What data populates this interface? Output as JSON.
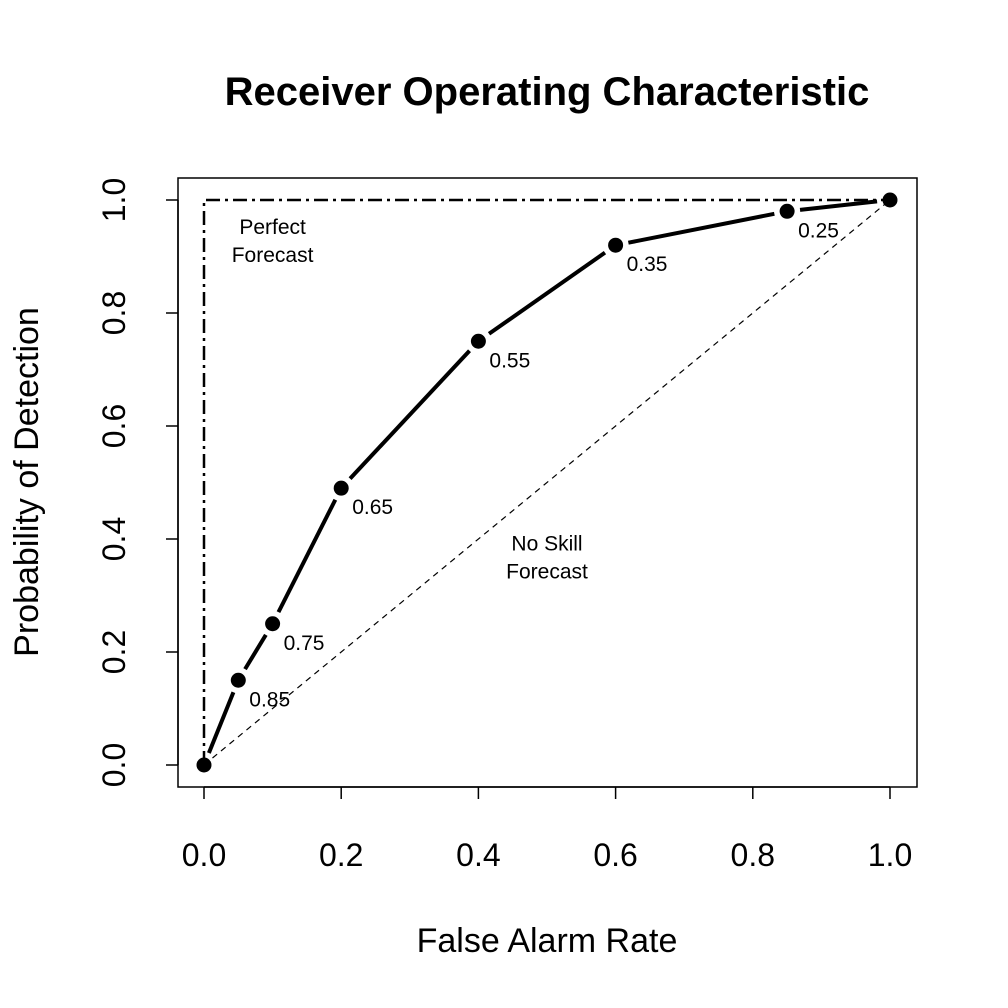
{
  "chart_data": {
    "type": "line",
    "title": "Receiver Operating Characteristic",
    "xlabel": "False Alarm Rate",
    "ylabel": "Probability of Detection",
    "xlim": [
      0.0,
      1.0
    ],
    "ylim": [
      0.0,
      1.0
    ],
    "x_ticks": [
      "0.0",
      "0.2",
      "0.4",
      "0.6",
      "0.8",
      "1.0"
    ],
    "y_ticks": [
      "0.0",
      "0.2",
      "0.4",
      "0.6",
      "0.8",
      "1.0"
    ],
    "grid": false,
    "series": [
      {
        "x": [
          0.0,
          0.05,
          0.1,
          0.2,
          0.4,
          0.6,
          0.85,
          1.0
        ],
        "y": [
          0.0,
          0.15,
          0.25,
          0.49,
          0.75,
          0.92,
          0.98,
          1.0
        ],
        "point_labels": [
          "",
          "0.85",
          "0.75",
          "0.65",
          "0.55",
          "0.35",
          "0.25",
          ""
        ]
      }
    ],
    "reference_lines": [
      {
        "style": "dash-dot",
        "x": [
          0.0,
          0.0,
          1.0
        ],
        "y": [
          0.0,
          1.0,
          1.0
        ]
      },
      {
        "style": "dashed",
        "x": [
          0.0,
          1.0
        ],
        "y": [
          0.0,
          1.0
        ]
      }
    ],
    "annotations": [
      {
        "lines": [
          "Perfect",
          "Forecast"
        ],
        "x": 0.1,
        "y": 0.94
      },
      {
        "lines": [
          "No Skill",
          "Forecast"
        ],
        "x": 0.5,
        "y": 0.38
      }
    ]
  }
}
